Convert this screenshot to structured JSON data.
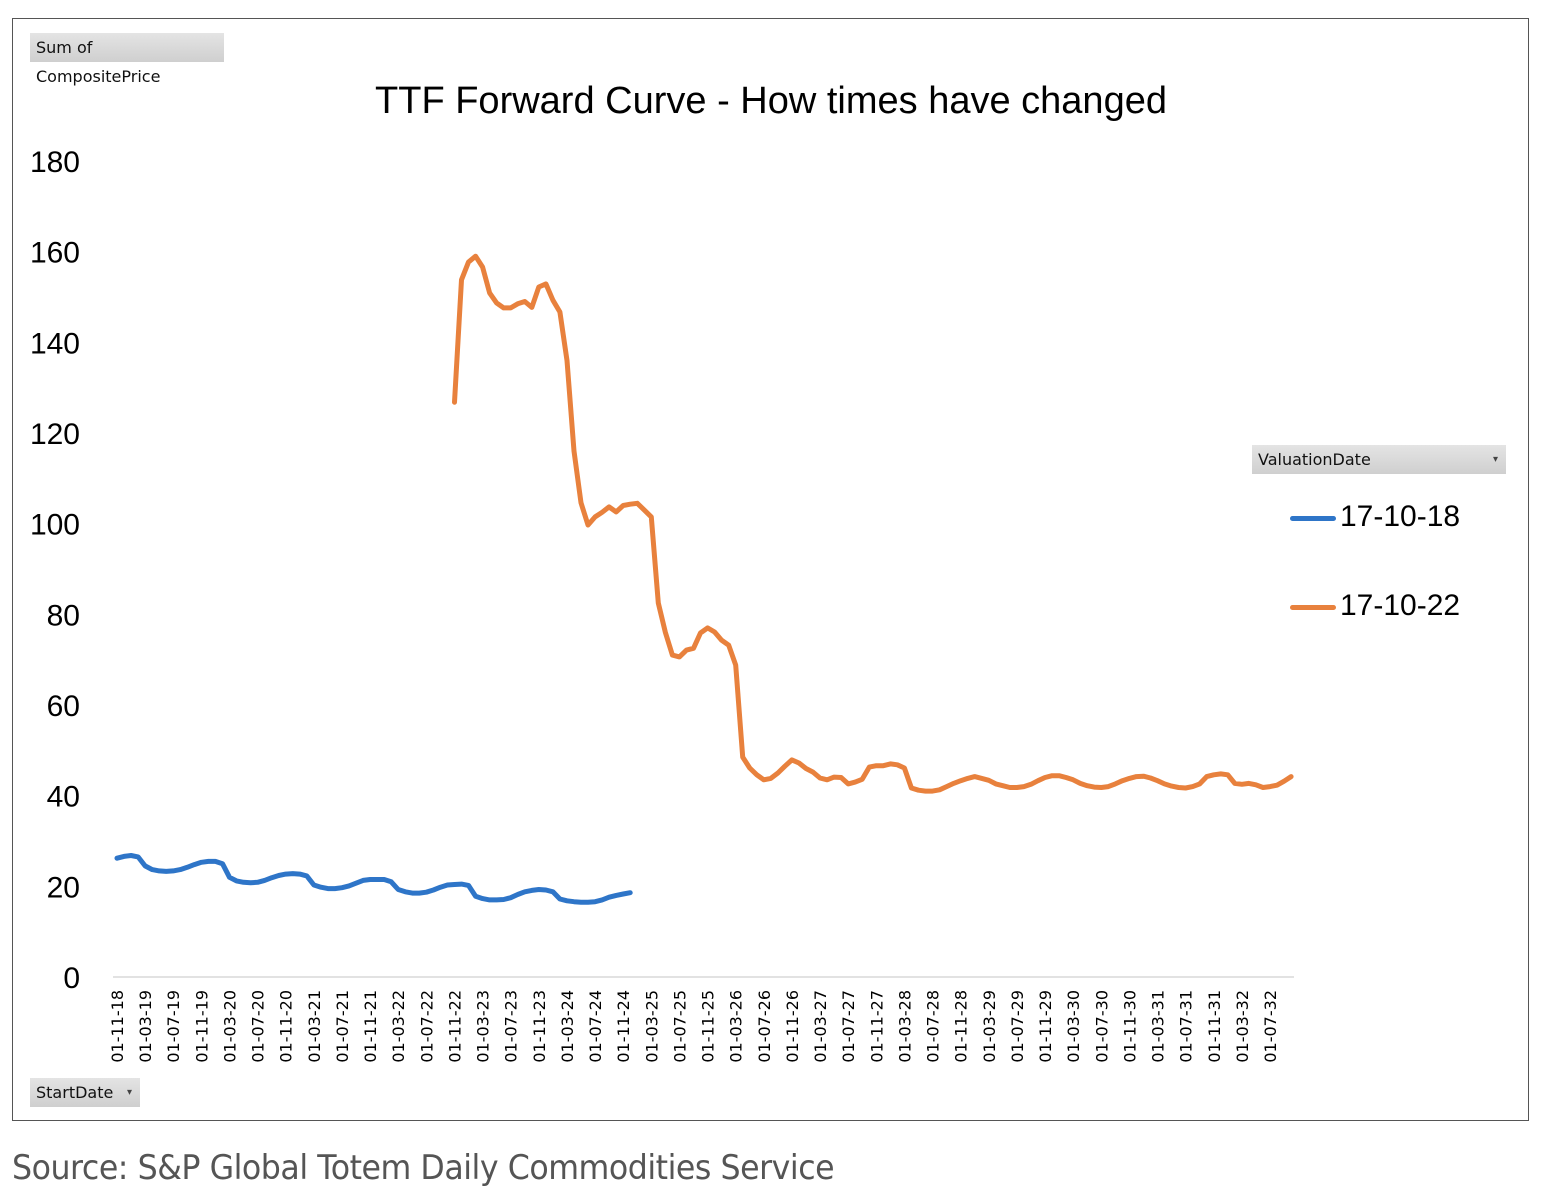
{
  "field_buttons": {
    "values": "Sum of CompositePrice",
    "axis": "StartDate",
    "legend": "ValuationDate"
  },
  "source": "Source: S&P Global Totem Daily Commodities Service",
  "chart_data": {
    "type": "line",
    "title": "TTF Forward Curve - How times have changed",
    "xlabel": "",
    "ylabel": "",
    "ylim": [
      0,
      180
    ],
    "yticks": [
      "0",
      "20",
      "40",
      "60",
      "80",
      "100",
      "120",
      "140",
      "160",
      "180"
    ],
    "xticks": [
      "01-11-18",
      "01-03-19",
      "01-07-19",
      "01-11-19",
      "01-03-20",
      "01-07-20",
      "01-11-20",
      "01-03-21",
      "01-07-21",
      "01-11-21",
      "01-03-22",
      "01-07-22",
      "01-11-22",
      "01-03-23",
      "01-07-23",
      "01-11-23",
      "01-03-24",
      "01-07-24",
      "01-11-24",
      "01-03-25",
      "01-07-25",
      "01-11-25",
      "01-03-26",
      "01-07-26",
      "01-11-26",
      "01-03-27",
      "01-07-27",
      "01-11-27",
      "01-03-28",
      "01-07-28",
      "01-11-28",
      "01-03-29",
      "01-07-29",
      "01-11-29",
      "01-03-30",
      "01-07-30",
      "01-11-30",
      "01-03-31",
      "01-07-31",
      "01-11-31",
      "01-03-32",
      "01-07-32"
    ],
    "grid": false,
    "legend_position": "right",
    "series": [
      {
        "name": "17-10-18",
        "color": "#2e75c8",
        "start": "01-11-18",
        "values": [
          26.2,
          26.6,
          26.8,
          26.5,
          24.5,
          23.7,
          23.4,
          23.3,
          23.4,
          23.7,
          24.2,
          24.8,
          25.3,
          25.5,
          25.5,
          25,
          22,
          21.2,
          20.9,
          20.8,
          20.9,
          21.3,
          21.9,
          22.4,
          22.7,
          22.8,
          22.7,
          22.3,
          20.3,
          19.8,
          19.5,
          19.5,
          19.7,
          20.1,
          20.7,
          21.3,
          21.5,
          21.5,
          21.5,
          21,
          19.3,
          18.8,
          18.5,
          18.5,
          18.7,
          19.2,
          19.8,
          20.3,
          20.4,
          20.5,
          20.2,
          17.8,
          17.3,
          17,
          17,
          17.1,
          17.5,
          18.2,
          18.8,
          19.1,
          19.3,
          19.2,
          18.8,
          17.2,
          16.8,
          16.6,
          16.5,
          16.5,
          16.6,
          17,
          17.6,
          18,
          18.3,
          18.6
        ]
      },
      {
        "name": "17-10-22",
        "color": "#e8813d",
        "start": "01-11-22",
        "values": [
          126.8,
          153.8,
          157.7,
          159,
          156.6,
          150.9,
          148.7,
          147.6,
          147.6,
          148.5,
          149,
          147.7,
          152.2,
          152.9,
          149.3,
          146.7,
          136,
          116,
          104.6,
          99.7,
          101.5,
          102.5,
          103.7,
          102.6,
          104,
          104.3,
          104.5,
          103,
          101.5,
          82.5,
          76,
          71,
          70.6,
          72.1,
          72.5,
          75.9,
          77,
          76.1,
          74.3,
          73.2,
          68.8,
          48.5,
          46.1,
          44.6,
          43.5,
          43.8,
          45,
          46.5,
          47.9,
          47.2,
          46,
          45.2,
          43.9,
          43.5,
          44.1,
          44,
          42.6,
          43,
          43.6,
          46.3,
          46.6,
          46.6,
          47,
          46.8,
          46.1,
          41.7,
          41.2,
          41,
          41,
          41.3,
          42,
          42.7,
          43.3,
          43.8,
          44.2,
          43.8,
          43.4,
          42.6,
          42.2,
          41.8,
          41.8,
          42,
          42.5,
          43.3,
          44,
          44.4,
          44.4,
          44,
          43.5,
          42.7,
          42.2,
          41.9,
          41.8,
          42,
          42.6,
          43.3,
          43.8,
          44.2,
          44.3,
          43.9,
          43.3,
          42.6,
          42.1,
          41.8,
          41.7,
          42,
          42.6,
          44.2,
          44.6,
          44.8,
          44.6,
          42.7,
          42.5,
          42.7,
          42.4,
          41.8,
          42,
          42.3,
          43.2,
          44.2
        ]
      }
    ]
  }
}
